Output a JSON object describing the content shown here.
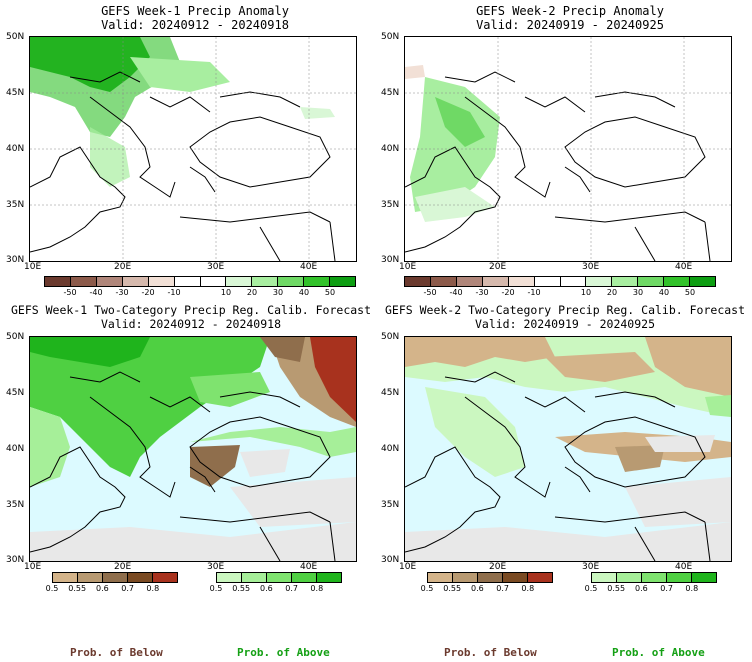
{
  "panels": [
    {
      "id": "p1",
      "title": "GEFS Week-1 Precip Anomaly",
      "valid": "Valid: 20240912 - 20240918",
      "kind": "anomaly",
      "ylabels": [
        "50N",
        "45N",
        "40N",
        "35N",
        "30N"
      ],
      "xlabels": [
        "10E",
        "20E",
        "30E",
        "40E"
      ]
    },
    {
      "id": "p2",
      "title": "GEFS Week-2 Precip Anomaly",
      "valid": "Valid: 20240919 - 20240925",
      "kind": "anomaly",
      "ylabels": [
        "50N",
        "45N",
        "40N",
        "35N",
        "30N"
      ],
      "xlabels": [
        "10E",
        "20E",
        "30E",
        "40E"
      ]
    },
    {
      "id": "p3",
      "title": "GEFS Week-1 Two-Category Precip Reg. Calib. Forecast",
      "valid": "Valid: 20240912 - 20240918",
      "kind": "prob",
      "ylabels": [
        "50N",
        "45N",
        "40N",
        "35N",
        "30N"
      ],
      "xlabels": [
        "10E",
        "20E",
        "30E",
        "40E"
      ]
    },
    {
      "id": "p4",
      "title": "GEFS Week-2 Two-Category Precip Reg. Calib. Forecast",
      "valid": "Valid: 20240919 - 20240925",
      "kind": "prob",
      "ylabels": [
        "50N",
        "45N",
        "40N",
        "35N",
        "30N"
      ],
      "xlabels": [
        "10E",
        "20E",
        "30E",
        "40E"
      ]
    }
  ],
  "anomaly_colorbar": {
    "colors": [
      "#6b3a2e",
      "#8c5a4a",
      "#b0867a",
      "#d6b9ad",
      "#f2e0d6",
      "#ffffff",
      "#ffffff",
      "#d9f7d6",
      "#a8eea0",
      "#6fd965",
      "#32c22a",
      "#0d9e12"
    ],
    "labels": [
      "-50",
      "-40",
      "-30",
      "-20",
      "-10",
      "10",
      "20",
      "30",
      "40",
      "50"
    ]
  },
  "below_colorbar": {
    "colors": [
      "#d4b48a",
      "#b89a72",
      "#8f6e4c",
      "#7a4a22",
      "#a8321e"
    ],
    "labels": [
      "0.5",
      "0.55",
      "0.6",
      "0.7",
      "0.8"
    ]
  },
  "above_colorbar": {
    "colors": [
      "#cbf7c0",
      "#a6ef99",
      "#7fe36f",
      "#4fd042",
      "#1fb41c"
    ],
    "labels": [
      "0.5",
      "0.55",
      "0.6",
      "0.7",
      "0.8"
    ]
  },
  "footer": {
    "below": "Prob. of Below",
    "above": "Prob. of Above"
  },
  "colors": {
    "sea": "#dcfaff",
    "neutral": "#e8e8e8",
    "below_text": "#6b3a2e",
    "above_text": "#14a014"
  }
}
